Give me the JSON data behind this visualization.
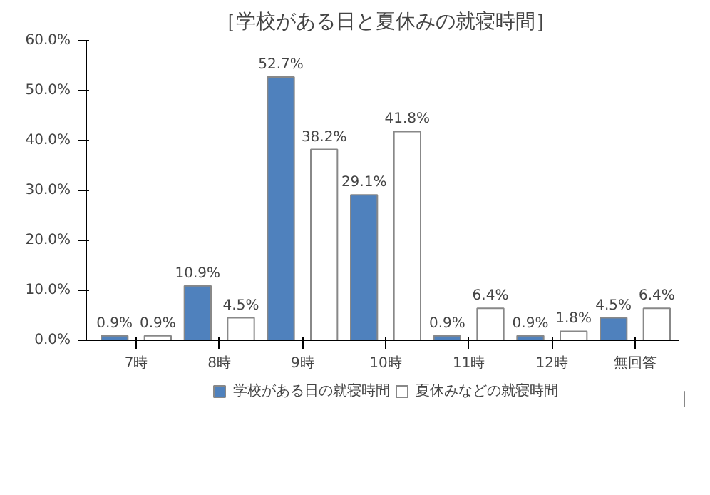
{
  "chart_data": {
    "type": "bar",
    "title": "［学校がある日と夏休みの就寝時間］",
    "categories": [
      "7時",
      "8時",
      "9時",
      "10時",
      "11時",
      "12時",
      "無回答"
    ],
    "series": [
      {
        "name": "学校がある日の就寝時間",
        "color": "#4f81bd",
        "values": [
          0.9,
          10.9,
          52.7,
          29.1,
          0.9,
          0.9,
          4.5
        ],
        "value_labels": [
          "0.9%",
          "10.9%",
          "52.7%",
          "29.1%",
          "0.9%",
          "0.9%",
          "4.5%"
        ]
      },
      {
        "name": "夏休みなどの就寝時間",
        "color": "#ffffff",
        "values": [
          0.9,
          4.5,
          38.2,
          41.8,
          6.4,
          1.8,
          6.4
        ],
        "value_labels": [
          "0.9%",
          "4.5%",
          "38.2%",
          "41.8%",
          "6.4%",
          "1.8%",
          "6.4%"
        ]
      }
    ],
    "ylim": [
      0,
      60
    ],
    "yticks": [
      {
        "value": 0,
        "label": "0.0%"
      },
      {
        "value": 10,
        "label": "10.0%"
      },
      {
        "value": 20,
        "label": "20.0%"
      },
      {
        "value": 30,
        "label": "30.0%"
      },
      {
        "value": 40,
        "label": "40.0%"
      },
      {
        "value": 50,
        "label": "50.0%"
      },
      {
        "value": 60,
        "label": "60.0%"
      }
    ],
    "grid": false,
    "legend": "bottom"
  }
}
